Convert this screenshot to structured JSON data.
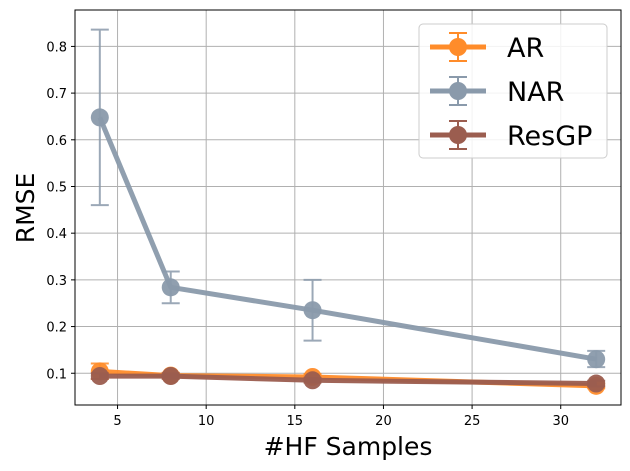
{
  "chart_data": {
    "type": "line",
    "title": "",
    "xlabel": "#HF Samples",
    "ylabel": "RMSE",
    "xlim": [
      2.6,
      33.4
    ],
    "ylim": [
      0.032,
      0.878
    ],
    "xticks": [
      5,
      10,
      15,
      20,
      25,
      30
    ],
    "yticks": [
      0.1,
      0.2,
      0.3,
      0.4,
      0.5,
      0.6,
      0.7,
      0.8
    ],
    "grid": true,
    "legend_position": "top-right",
    "x": [
      4,
      8,
      16,
      32
    ],
    "series": [
      {
        "name": "AR",
        "color": "#ff8c2a",
        "values": [
          0.104,
          0.095,
          0.092,
          0.073
        ],
        "err_low": [
          0.088,
          0.089,
          0.086,
          0.068
        ],
        "err_high": [
          0.121,
          0.101,
          0.098,
          0.078
        ]
      },
      {
        "name": "NAR",
        "color": "#8a9aab",
        "values": [
          0.648,
          0.284,
          0.235,
          0.13
        ],
        "err_low": [
          0.46,
          0.25,
          0.17,
          0.113
        ],
        "err_high": [
          0.836,
          0.318,
          0.3,
          0.148
        ]
      },
      {
        "name": "ResGP",
        "color": "#9b5d4f",
        "values": [
          0.094,
          0.094,
          0.085,
          0.078
        ],
        "err_low": [
          0.088,
          0.088,
          0.08,
          0.072
        ],
        "err_high": [
          0.1,
          0.1,
          0.09,
          0.084
        ]
      }
    ]
  }
}
